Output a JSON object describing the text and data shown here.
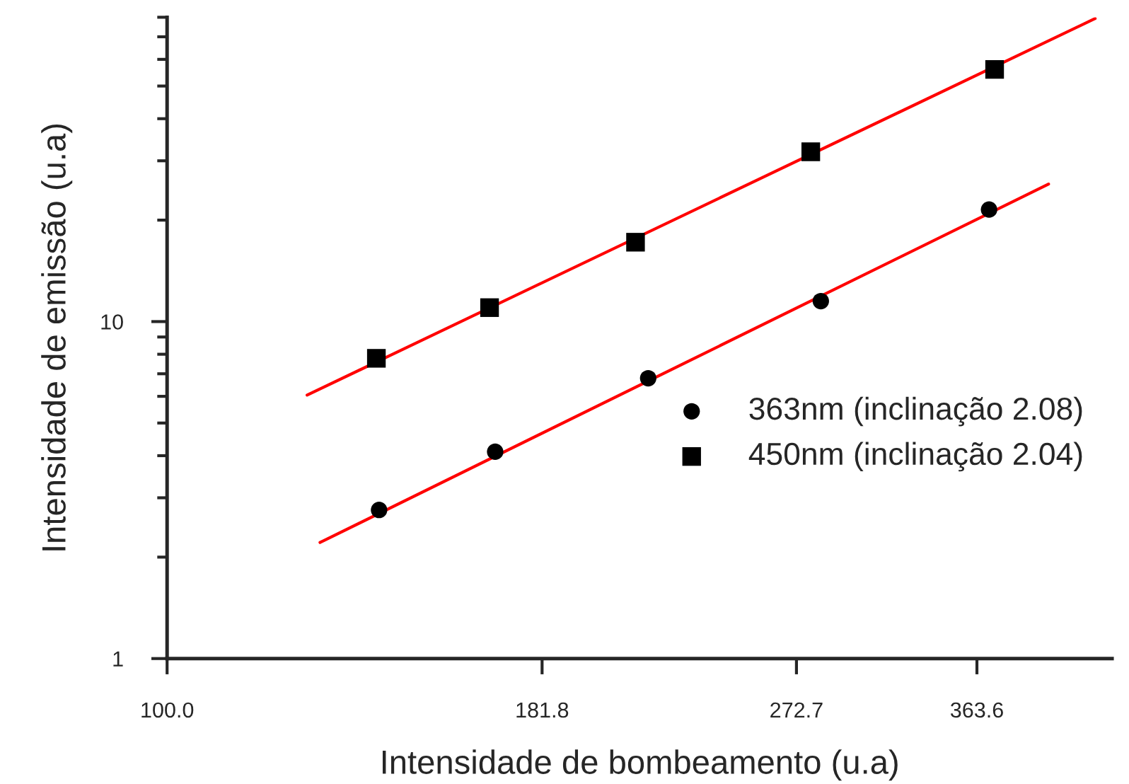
{
  "chart_data": {
    "type": "scatter",
    "xlabel": "Intensidade de bombeamento (u.a)",
    "ylabel": "Intensidade de emissão (u.a)",
    "log": "xy",
    "xlim": [
      100,
      451
    ],
    "ylim": [
      1,
      80
    ],
    "xticks": [
      {
        "value": 100,
        "label": "100.0"
      },
      {
        "value": 181.8,
        "label": "181.8"
      },
      {
        "value": 272.7,
        "label": "272.7"
      },
      {
        "value": 363.6,
        "label": "363.6"
      }
    ],
    "yticks": [
      1,
      10
    ],
    "legend": "right",
    "grid": false,
    "series": [
      {
        "name": "363nm (inclinação 2.08)",
        "marker": "circle",
        "color": "#000000",
        "x": [
          140.2,
          168.7,
          215.3,
          283.5,
          370.7
        ],
        "values": [
          2.76,
          4.11,
          6.79,
          11.5,
          21.5
        ]
      },
      {
        "name": "450nm (inclinação 2.04)",
        "marker": "square",
        "color": "#000000",
        "x": [
          139.6,
          167.2,
          211,
          279,
          374
        ],
        "values": [
          7.78,
          11.0,
          17.2,
          31.9,
          56.0
        ]
      },
      {
        "type": "line",
        "color": "#ff0000",
        "line_style": "solid",
        "marker": "none",
        "x": [
          127.6,
          407.6
        ],
        "values": [
          2.21,
          25.6
        ]
      },
      {
        "type": "line",
        "color": "#ff0000",
        "line_style": "solid",
        "marker": "none",
        "x": [
          125,
          439
        ],
        "values": [
          6.05,
          79.3
        ]
      }
    ]
  }
}
